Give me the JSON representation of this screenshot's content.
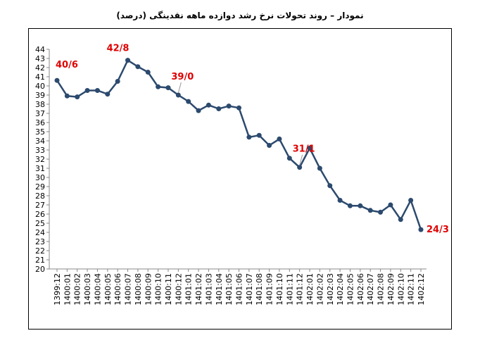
{
  "chart_data": {
    "type": "line",
    "title": "نمودار – روند تحولات نرخ رشد دوازده ماهه نقدینگی (درصد)",
    "categories": [
      "1399:12",
      "1400:01",
      "1400:02",
      "1400:03",
      "1400:04",
      "1400:05",
      "1400:06",
      "1400:07",
      "1400:08",
      "1400:09",
      "1400:10",
      "1400:11",
      "1400:12",
      "1401:01",
      "1401:02",
      "1401:03",
      "1401:04",
      "1401:05",
      "1401:06",
      "1401:07",
      "1401:08",
      "1401:09",
      "1401:10",
      "1401:11",
      "1401:12",
      "1402:01",
      "1402:02",
      "1402:03",
      "1402:04",
      "1402:05",
      "1402:06",
      "1402:07",
      "1402:08",
      "1402:09",
      "1402:10",
      "1402:11",
      "1402:12"
    ],
    "values": [
      40.6,
      38.9,
      38.8,
      39.5,
      39.5,
      39.1,
      40.5,
      42.8,
      42.1,
      41.5,
      39.9,
      39.8,
      39.0,
      38.3,
      37.3,
      37.9,
      37.5,
      37.8,
      37.6,
      34.4,
      34.6,
      33.5,
      34.2,
      32.1,
      31.1,
      33.2,
      31.0,
      29.1,
      27.5,
      26.9,
      26.9,
      26.4,
      26.2,
      27.0,
      25.4,
      27.5,
      24.3
    ],
    "value_labels": [
      "40/6",
      null,
      null,
      null,
      null,
      null,
      null,
      "42/8",
      null,
      null,
      null,
      null,
      "39/0",
      null,
      null,
      null,
      null,
      null,
      null,
      null,
      null,
      null,
      null,
      null,
      "31/1",
      null,
      null,
      null,
      null,
      null,
      null,
      null,
      null,
      null,
      null,
      null,
      "24/3"
    ],
    "color": "#2c4a6e",
    "ylim": [
      20,
      44
    ],
    "yticks": [
      20,
      21,
      22,
      23,
      24,
      25,
      26,
      27,
      28,
      29,
      30,
      31,
      32,
      33,
      34,
      35,
      36,
      37,
      38,
      39,
      40,
      41,
      42,
      43,
      44
    ],
    "grid": false
  }
}
